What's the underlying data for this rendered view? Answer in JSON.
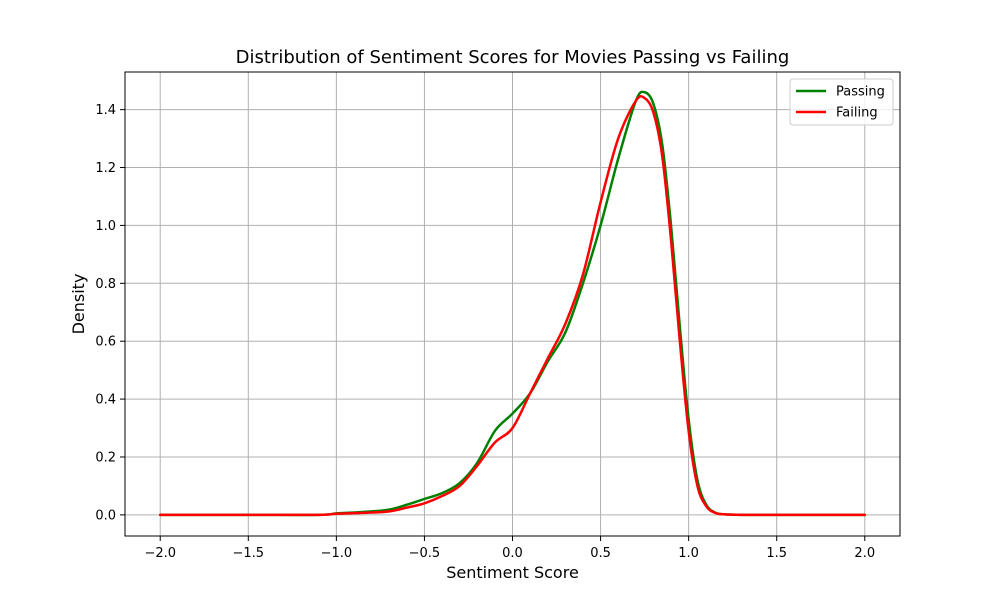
{
  "chart_data": {
    "type": "line",
    "title": "Distribution of Sentiment Scores for Movies Passing vs Failing",
    "xlabel": "Sentiment Score",
    "ylabel": "Density",
    "xlim": [
      -2.2,
      2.2
    ],
    "ylim": [
      -0.073,
      1.53
    ],
    "x_ticks": [
      -2.0,
      -1.5,
      -1.0,
      -0.5,
      0.0,
      0.5,
      1.0,
      1.5,
      2.0
    ],
    "x_tick_labels": [
      "−2.0",
      "−1.5",
      "−1.0",
      "−0.5",
      "0.0",
      "0.5",
      "1.0",
      "1.5",
      "2.0"
    ],
    "y_ticks": [
      0.0,
      0.2,
      0.4,
      0.6,
      0.8,
      1.0,
      1.2,
      1.4
    ],
    "y_tick_labels": [
      "0.0",
      "0.2",
      "0.4",
      "0.6",
      "0.8",
      "1.0",
      "1.2",
      "1.4"
    ],
    "grid": true,
    "legend_position": "top-right",
    "series": [
      {
        "name": "Passing",
        "color": "#008000",
        "x": [
          -2.0,
          -1.5,
          -1.1,
          -1.0,
          -0.9,
          -0.8,
          -0.7,
          -0.6,
          -0.5,
          -0.4,
          -0.3,
          -0.2,
          -0.1,
          0.0,
          0.1,
          0.2,
          0.3,
          0.4,
          0.5,
          0.6,
          0.7,
          0.75,
          0.8,
          0.85,
          0.9,
          0.95,
          1.0,
          1.05,
          1.1,
          1.15,
          1.2,
          1.3,
          1.5,
          2.0
        ],
        "y": [
          0.0,
          0.0,
          0.0,
          0.005,
          0.008,
          0.012,
          0.018,
          0.035,
          0.055,
          0.075,
          0.11,
          0.18,
          0.29,
          0.35,
          0.42,
          0.53,
          0.63,
          0.8,
          1.0,
          1.23,
          1.43,
          1.46,
          1.42,
          1.28,
          1.0,
          0.65,
          0.33,
          0.12,
          0.035,
          0.008,
          0.002,
          0.0,
          0.0,
          0.0
        ]
      },
      {
        "name": "Failing",
        "color": "#ff0000",
        "x": [
          -2.0,
          -1.5,
          -1.1,
          -1.0,
          -0.9,
          -0.8,
          -0.7,
          -0.6,
          -0.5,
          -0.4,
          -0.3,
          -0.2,
          -0.1,
          0.0,
          0.1,
          0.2,
          0.3,
          0.4,
          0.5,
          0.6,
          0.7,
          0.75,
          0.8,
          0.85,
          0.9,
          0.95,
          1.0,
          1.05,
          1.1,
          1.15,
          1.2,
          1.3,
          1.5,
          2.0
        ],
        "y": [
          0.0,
          0.0,
          0.0,
          0.004,
          0.006,
          0.008,
          0.012,
          0.025,
          0.04,
          0.065,
          0.1,
          0.17,
          0.25,
          0.3,
          0.42,
          0.54,
          0.66,
          0.83,
          1.08,
          1.3,
          1.43,
          1.44,
          1.39,
          1.24,
          0.95,
          0.6,
          0.29,
          0.1,
          0.03,
          0.007,
          0.002,
          0.0,
          0.0,
          0.0
        ]
      }
    ]
  }
}
